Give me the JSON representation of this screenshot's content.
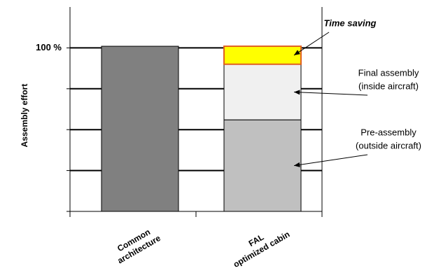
{
  "chart_data": {
    "type": "stacked_bar",
    "y_label": "Assembly effort",
    "categories": [
      [
        "Common",
        "architecture"
      ],
      [
        "FAL",
        "optimized cabin"
      ]
    ],
    "ylim": [
      0,
      125
    ],
    "yticks": [
      {
        "value": 0,
        "label": null
      },
      {
        "value": 25,
        "label": null
      },
      {
        "value": 50,
        "label": null
      },
      {
        "value": 75,
        "label": null
      },
      {
        "value": 100,
        "label": "100 %"
      }
    ],
    "grid": true,
    "series": [
      {
        "color": "#808080",
        "values": [
          101,
          null
        ]
      },
      {
        "name": [
          "Pre-assembly",
          "(outside aircraft)"
        ],
        "color": "#c0c0c0",
        "values": [
          null,
          56
        ]
      },
      {
        "name": [
          "Final assembly",
          "(inside aircraft)"
        ],
        "color": "#f0f0f0",
        "values": [
          null,
          34
        ]
      },
      {
        "name": [
          "Time saving"
        ],
        "color": "#ffff00",
        "values": [
          null,
          11
        ]
      }
    ]
  }
}
